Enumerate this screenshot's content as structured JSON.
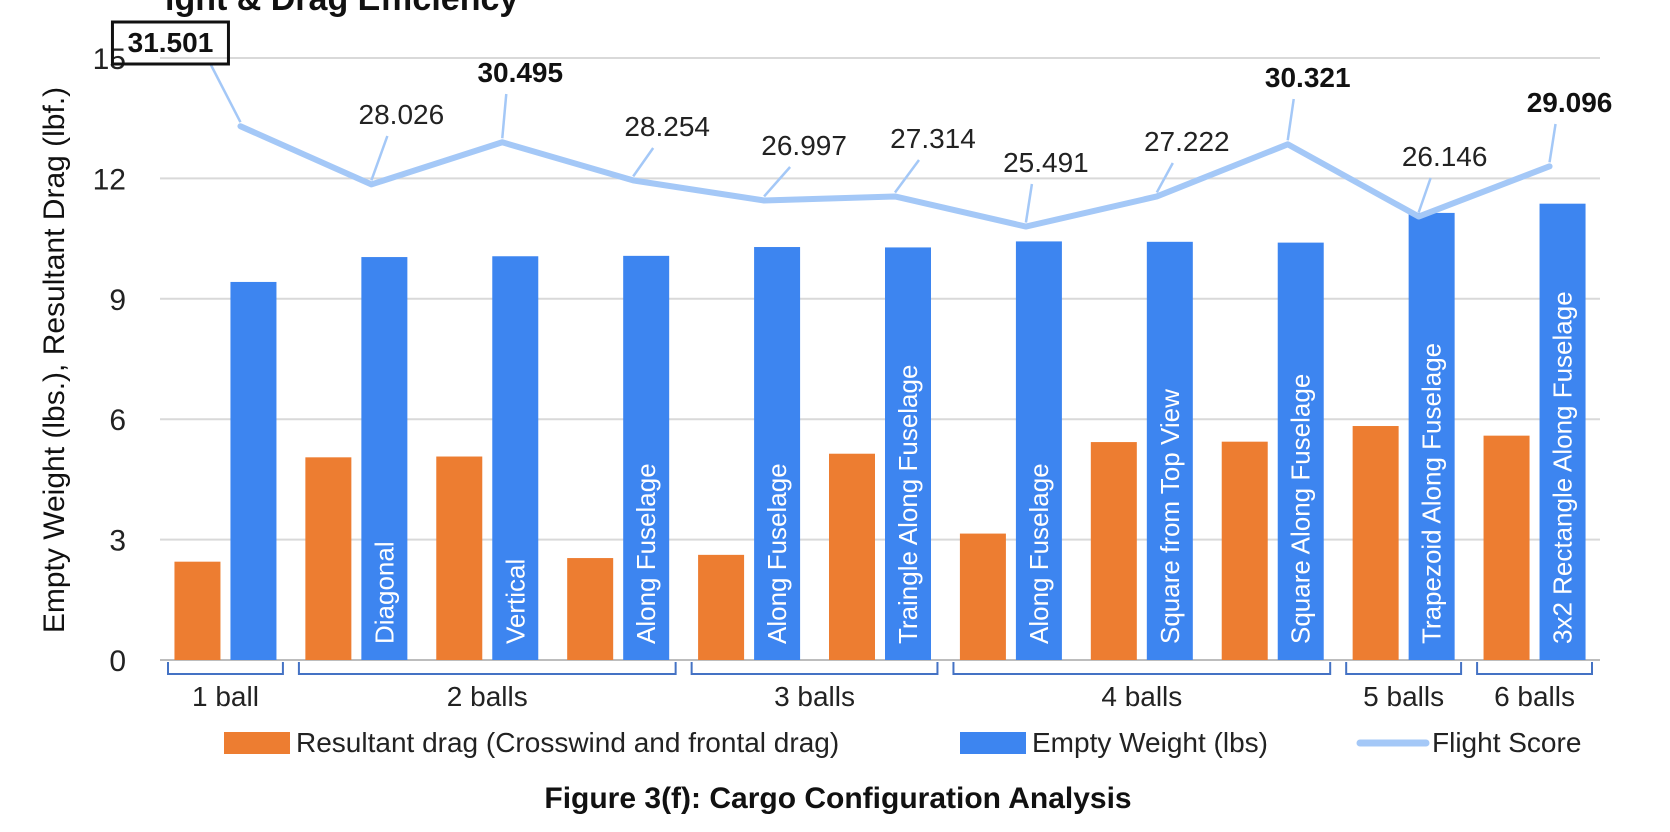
{
  "chart_data": {
    "type": "bar",
    "title": "ight & Drag Efficiency",
    "caption": "Figure 3(f): Cargo Configuration Analysis",
    "ylabel": "Empty Weight (lbs.), Resultant Drag (lbf.)",
    "ylim": [
      0,
      15
    ],
    "yticks": [
      "0",
      "3",
      "6",
      "9",
      "12",
      "15"
    ],
    "grid": true,
    "legend_position": "bottom",
    "categories": [
      "1 ball",
      "Diagonal",
      "Vertical",
      "Along Fuselage",
      "Along Fuselage",
      "Traingle Along Fuselage",
      "Along Fuselage",
      "Square from Top View",
      "Square Along Fuselage",
      "Trapezoid Along Fuselage",
      "3x2 Rectangle Along Fuselage"
    ],
    "bar_labels": [
      "",
      "Diagonal",
      "Vertical",
      "Along Fuselage",
      "Along Fuselage",
      "Traingle Along Fuselage",
      "Along Fuselage",
      "Square from Top View",
      "Square Along Fuselage",
      "Trapezoid Along Fuselage",
      "3x2 Rectangle Along Fuselage"
    ],
    "groups": [
      {
        "label": "1 ball",
        "start": 0,
        "end": 0
      },
      {
        "label": "2 balls",
        "start": 1,
        "end": 3
      },
      {
        "label": "3 balls",
        "start": 4,
        "end": 5
      },
      {
        "label": "4 balls",
        "start": 6,
        "end": 8
      },
      {
        "label": "5 balls",
        "start": 9,
        "end": 9
      },
      {
        "label": "6 balls",
        "start": 10,
        "end": 10
      }
    ],
    "series": [
      {
        "name": "Resultant drag (Crosswind and frontal drag)",
        "kind": "bar",
        "color": "#ED7D31",
        "values": [
          2.45,
          5.05,
          5.07,
          2.54,
          2.62,
          5.14,
          3.15,
          5.43,
          5.44,
          5.83,
          5.59
        ]
      },
      {
        "name": "Empty Weight (lbs)",
        "kind": "bar",
        "color": "#3D85F0",
        "values": [
          9.42,
          10.04,
          10.06,
          10.07,
          10.29,
          10.28,
          10.43,
          10.42,
          10.4,
          11.14,
          11.37
        ]
      },
      {
        "name": "Flight Score",
        "kind": "line",
        "color": "#A4C8F7",
        "values": [
          13.3,
          11.85,
          12.9,
          11.95,
          11.45,
          11.55,
          10.8,
          11.55,
          12.85,
          11.05,
          12.3
        ],
        "labels": [
          "31.501",
          "28.026",
          "30.495",
          "28.254",
          "26.997",
          "27.314",
          "25.491",
          "27.222",
          "30.321",
          "26.146",
          "29.096"
        ],
        "bold": [
          true,
          false,
          true,
          false,
          false,
          false,
          false,
          false,
          true,
          false,
          true
        ],
        "boxed": [
          true,
          false,
          false,
          false,
          false,
          false,
          false,
          false,
          false,
          false,
          false
        ]
      }
    ]
  }
}
